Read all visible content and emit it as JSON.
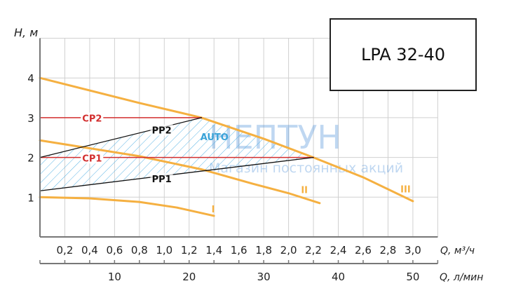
{
  "chart_data": {
    "type": "line",
    "title": "LPA 32-40",
    "ylabel": "H, м",
    "xlabel": "Q, м³/ч",
    "x2label": "Q, л/мин",
    "xlim": [
      0,
      3.2
    ],
    "ylim": [
      0,
      5
    ],
    "grid": true,
    "x_ticks": [
      "0,2",
      "0,4",
      "0,6",
      "0,8",
      "1,0",
      "1,2",
      "1,4",
      "1,6",
      "1,8",
      "2,0",
      "2,2",
      "2,4",
      "2,6",
      "2,8",
      "3,0"
    ],
    "y_ticks": [
      "1",
      "2",
      "3",
      "4"
    ],
    "x2_ticks": [
      "10",
      "20",
      "30",
      "40",
      "50"
    ],
    "series": [
      {
        "name": "I",
        "color": "#f5b041",
        "points": [
          [
            0,
            1.0
          ],
          [
            0.4,
            0.97
          ],
          [
            0.8,
            0.88
          ],
          [
            1.1,
            0.74
          ],
          [
            1.4,
            0.53
          ]
        ]
      },
      {
        "name": "II",
        "color": "#f5b041",
        "points": [
          [
            0,
            2.43
          ],
          [
            0.8,
            2.03
          ],
          [
            1.3,
            1.7
          ],
          [
            1.71,
            1.34
          ],
          [
            2.0,
            1.1
          ],
          [
            2.25,
            0.85
          ]
        ]
      },
      {
        "name": "III",
        "color": "#f5b041",
        "points": [
          [
            0,
            4.0
          ],
          [
            0.8,
            3.37
          ],
          [
            1.3,
            3.0
          ],
          [
            1.8,
            2.47
          ],
          [
            2.2,
            2.0
          ],
          [
            2.6,
            1.5
          ],
          [
            3.0,
            0.9
          ]
        ]
      },
      {
        "name": "CP1",
        "color": "#d32f2f",
        "points": [
          [
            0,
            2.0
          ],
          [
            2.2,
            2.0
          ]
        ]
      },
      {
        "name": "CP2",
        "color": "#d32f2f",
        "points": [
          [
            0,
            3.0
          ],
          [
            1.3,
            3.0
          ]
        ]
      },
      {
        "name": "PP1",
        "color": "#111111",
        "points": [
          [
            0,
            1.16
          ],
          [
            2.2,
            2.0
          ]
        ]
      },
      {
        "name": "PP2",
        "color": "#111111",
        "points": [
          [
            0,
            2.0
          ],
          [
            1.3,
            3.0
          ]
        ]
      }
    ],
    "auto_region": {
      "label": "AUTO",
      "color": "#3aa3d8"
    }
  },
  "watermark": {
    "brand": "НЕПТУН",
    "slogan": "Магазин постоянных акций"
  }
}
